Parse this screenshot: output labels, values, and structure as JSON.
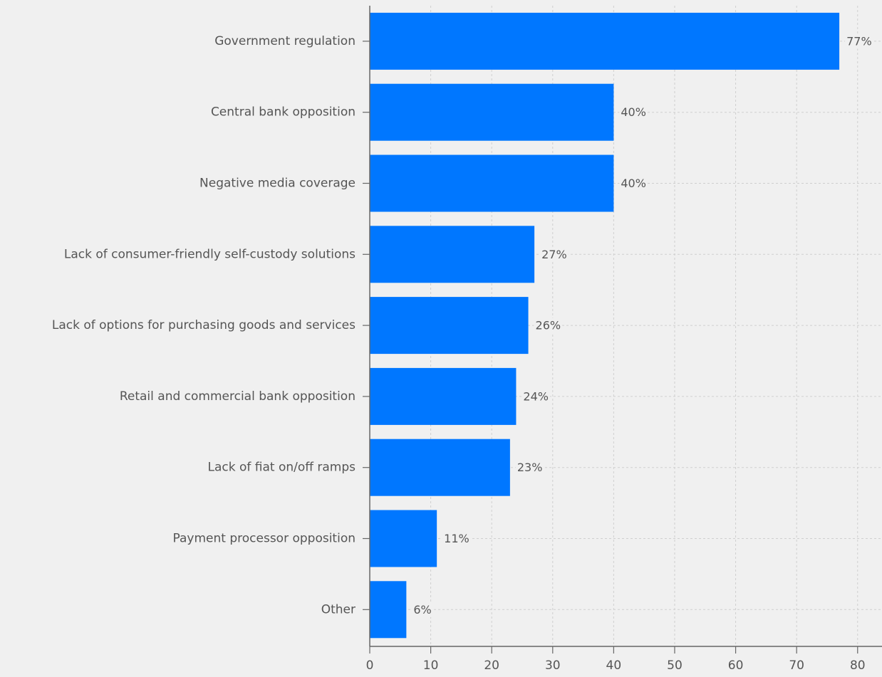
{
  "chart_data": {
    "type": "bar",
    "orientation": "horizontal",
    "categories": [
      "Government regulation",
      "Central bank opposition",
      "Negative media coverage",
      "Lack of consumer-friendly self-custody solutions",
      "Lack of options for purchasing goods and services",
      "Retail and commercial bank opposition",
      "Lack of fiat on/off ramps",
      "Payment processor opposition",
      "Other"
    ],
    "values": [
      77,
      40,
      40,
      27,
      26,
      24,
      23,
      11,
      6
    ],
    "value_labels": [
      "77%",
      "40%",
      "40%",
      "27%",
      "26%",
      "24%",
      "23%",
      "11%",
      "6%"
    ],
    "title": "",
    "xlabel": "",
    "ylabel": "",
    "xlim": [
      0,
      84
    ],
    "x_ticks": [
      0,
      10,
      20,
      30,
      40,
      50,
      60,
      70,
      80
    ],
    "x_tick_labels": [
      "0",
      "10",
      "20",
      "30",
      "40",
      "50",
      "60",
      "70",
      "80"
    ],
    "grid": true,
    "legend": "none",
    "colors": {
      "bar": "#0077ff",
      "background": "#f0f0f0",
      "text": "#555555",
      "grid": "#cfcfcf",
      "axis": "#666666"
    }
  }
}
